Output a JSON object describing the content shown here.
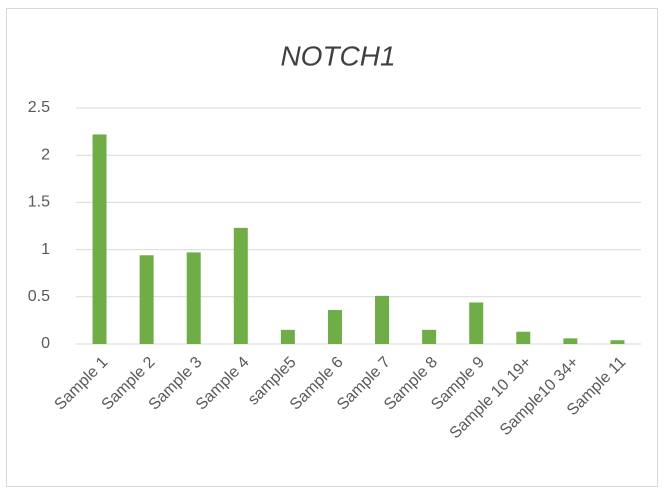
{
  "chart_data": {
    "type": "bar",
    "title": "NOTCH1",
    "categories": [
      "Sample 1",
      "Sample 2",
      "Sample 3",
      "Sample 4",
      "sample5",
      "Sample 6",
      "Sample 7",
      "Sample 8",
      "Sample 9",
      "Sample 10 19+",
      "Sample10 34+",
      "Sample 11"
    ],
    "values": [
      2.22,
      0.94,
      0.97,
      1.23,
      0.15,
      0.36,
      0.51,
      0.15,
      0.44,
      0.13,
      0.06,
      0.04
    ],
    "color": "#70ad47",
    "ylim": [
      0,
      2.5
    ],
    "yticks": [
      0,
      0.5,
      1,
      1.5,
      2,
      2.5
    ],
    "grid": true
  }
}
